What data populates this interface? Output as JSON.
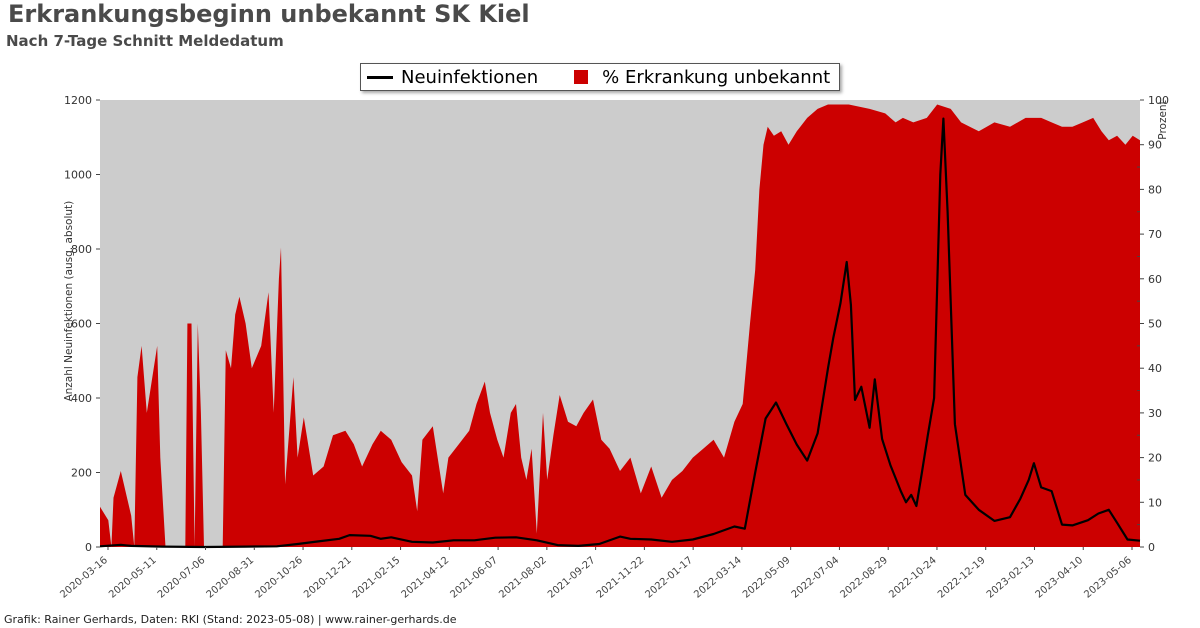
{
  "header": {
    "title": "Erkrankungsbeginn unbekannt SK Kiel",
    "subtitle": "Nach 7-Tage Schnitt Meldedatum"
  },
  "footer": {
    "credit": "Grafik: Rainer Gerhards, Daten: RKI (Stand: 2023-05-08) | www.rainer-gerhards.de"
  },
  "colors": {
    "plot_background": "#cccccc",
    "area": "#cc0000",
    "line": "#000000"
  },
  "chart_data": {
    "type": "area",
    "title": "Erkrankungsbeginn unbekannt SK Kiel",
    "subtitle": "Nach 7-Tage Schnitt Meldedatum",
    "ylabel": "Anzahl Neuinfektionen (ausg. absolut)",
    "y2label": "Prozent",
    "ylim": [
      0,
      1200
    ],
    "y2lim": [
      0,
      100
    ],
    "yticks": [
      0,
      200,
      400,
      600,
      800,
      1000,
      1200
    ],
    "y2ticks": [
      0,
      10,
      20,
      30,
      40,
      50,
      60,
      70,
      80,
      90,
      100
    ],
    "grid": false,
    "legend_position": "top-center",
    "x_start": "2020-03-16",
    "x_end": "2023-05-06",
    "series": [
      {
        "name": "Neuinfektionen",
        "type": "line",
        "axis": "left",
        "points": [
          [
            0.0,
            2
          ],
          [
            0.02,
            6
          ],
          [
            0.03,
            3
          ],
          [
            0.06,
            1
          ],
          [
            0.1,
            0
          ],
          [
            0.14,
            1
          ],
          [
            0.17,
            2
          ],
          [
            0.19,
            8
          ],
          [
            0.21,
            15
          ],
          [
            0.23,
            22
          ],
          [
            0.24,
            32
          ],
          [
            0.26,
            30
          ],
          [
            0.27,
            22
          ],
          [
            0.28,
            26
          ],
          [
            0.3,
            14
          ],
          [
            0.32,
            12
          ],
          [
            0.34,
            18
          ],
          [
            0.36,
            18
          ],
          [
            0.38,
            25
          ],
          [
            0.4,
            26
          ],
          [
            0.42,
            18
          ],
          [
            0.44,
            5
          ],
          [
            0.46,
            3
          ],
          [
            0.48,
            8
          ],
          [
            0.5,
            28
          ],
          [
            0.51,
            22
          ],
          [
            0.53,
            20
          ],
          [
            0.55,
            14
          ],
          [
            0.57,
            20
          ],
          [
            0.59,
            35
          ],
          [
            0.61,
            55
          ],
          [
            0.62,
            49
          ],
          [
            0.63,
            200
          ],
          [
            0.64,
            345
          ],
          [
            0.65,
            388
          ],
          [
            0.66,
            330
          ],
          [
            0.67,
            275
          ],
          [
            0.68,
            232
          ],
          [
            0.69,
            305
          ],
          [
            0.7,
            480
          ],
          [
            0.705,
            560
          ],
          [
            0.712,
            655
          ],
          [
            0.718,
            765
          ],
          [
            0.722,
            650
          ],
          [
            0.726,
            395
          ],
          [
            0.732,
            430
          ],
          [
            0.74,
            320
          ],
          [
            0.745,
            450
          ],
          [
            0.752,
            290
          ],
          [
            0.76,
            220
          ],
          [
            0.77,
            150
          ],
          [
            0.775,
            120
          ],
          [
            0.78,
            140
          ],
          [
            0.785,
            110
          ],
          [
            0.79,
            195
          ],
          [
            0.796,
            300
          ],
          [
            0.802,
            400
          ],
          [
            0.808,
            1000
          ],
          [
            0.811,
            1150
          ],
          [
            0.815,
            900
          ],
          [
            0.822,
            330
          ],
          [
            0.832,
            140
          ],
          [
            0.845,
            100
          ],
          [
            0.86,
            70
          ],
          [
            0.875,
            80
          ],
          [
            0.885,
            130
          ],
          [
            0.893,
            180
          ],
          [
            0.898,
            225
          ],
          [
            0.905,
            160
          ],
          [
            0.915,
            150
          ],
          [
            0.925,
            60
          ],
          [
            0.935,
            58
          ],
          [
            0.95,
            72
          ],
          [
            0.96,
            90
          ],
          [
            0.97,
            100
          ],
          [
            0.978,
            65
          ],
          [
            0.988,
            20
          ],
          [
            1.0,
            17
          ]
        ]
      },
      {
        "name": "% Erkrankung unbekannt",
        "type": "area",
        "axis": "right",
        "points": [
          [
            0.0,
            9
          ],
          [
            0.008,
            6
          ],
          [
            0.011,
            0
          ],
          [
            0.013,
            11
          ],
          [
            0.02,
            17
          ],
          [
            0.03,
            7
          ],
          [
            0.033,
            0
          ],
          [
            0.036,
            38
          ],
          [
            0.04,
            45
          ],
          [
            0.045,
            30
          ],
          [
            0.055,
            45
          ],
          [
            0.058,
            20
          ],
          [
            0.063,
            0
          ],
          [
            0.082,
            0
          ],
          [
            0.084,
            50
          ],
          [
            0.088,
            50
          ],
          [
            0.091,
            0
          ],
          [
            0.094,
            50
          ],
          [
            0.097,
            30
          ],
          [
            0.1,
            0
          ],
          [
            0.118,
            0
          ],
          [
            0.121,
            44
          ],
          [
            0.126,
            40
          ],
          [
            0.13,
            52
          ],
          [
            0.134,
            56
          ],
          [
            0.14,
            50
          ],
          [
            0.146,
            40
          ],
          [
            0.155,
            45
          ],
          [
            0.162,
            57
          ],
          [
            0.167,
            30
          ],
          [
            0.172,
            60
          ],
          [
            0.174,
            67
          ],
          [
            0.178,
            14
          ],
          [
            0.186,
            38
          ],
          [
            0.19,
            20
          ],
          [
            0.196,
            29
          ],
          [
            0.205,
            16
          ],
          [
            0.215,
            18
          ],
          [
            0.224,
            25
          ],
          [
            0.236,
            26
          ],
          [
            0.244,
            23
          ],
          [
            0.252,
            18
          ],
          [
            0.262,
            23
          ],
          [
            0.27,
            26
          ],
          [
            0.28,
            24
          ],
          [
            0.29,
            19
          ],
          [
            0.3,
            16
          ],
          [
            0.305,
            8
          ],
          [
            0.31,
            24
          ],
          [
            0.32,
            27
          ],
          [
            0.33,
            12
          ],
          [
            0.335,
            20
          ],
          [
            0.345,
            23
          ],
          [
            0.355,
            26
          ],
          [
            0.362,
            32
          ],
          [
            0.37,
            37
          ],
          [
            0.375,
            30
          ],
          [
            0.382,
            24
          ],
          [
            0.388,
            20
          ],
          [
            0.395,
            30
          ],
          [
            0.4,
            32
          ],
          [
            0.405,
            20
          ],
          [
            0.41,
            15
          ],
          [
            0.415,
            22
          ],
          [
            0.42,
            3
          ],
          [
            0.426,
            30
          ],
          [
            0.43,
            15
          ],
          [
            0.436,
            25
          ],
          [
            0.442,
            34
          ],
          [
            0.45,
            28
          ],
          [
            0.458,
            27
          ],
          [
            0.465,
            30
          ],
          [
            0.474,
            33
          ],
          [
            0.482,
            24
          ],
          [
            0.49,
            22
          ],
          [
            0.5,
            17
          ],
          [
            0.51,
            20
          ],
          [
            0.52,
            12
          ],
          [
            0.53,
            18
          ],
          [
            0.54,
            11
          ],
          [
            0.55,
            15
          ],
          [
            0.56,
            17
          ],
          [
            0.57,
            20
          ],
          [
            0.58,
            22
          ],
          [
            0.59,
            24
          ],
          [
            0.6,
            20
          ],
          [
            0.61,
            28
          ],
          [
            0.618,
            32
          ],
          [
            0.625,
            50
          ],
          [
            0.63,
            62
          ],
          [
            0.634,
            80
          ],
          [
            0.638,
            90
          ],
          [
            0.642,
            94
          ],
          [
            0.648,
            92
          ],
          [
            0.655,
            93
          ],
          [
            0.662,
            90
          ],
          [
            0.67,
            93
          ],
          [
            0.68,
            96
          ],
          [
            0.69,
            98
          ],
          [
            0.7,
            99
          ],
          [
            0.72,
            99
          ],
          [
            0.74,
            98
          ],
          [
            0.755,
            97
          ],
          [
            0.765,
            95
          ],
          [
            0.772,
            96
          ],
          [
            0.782,
            95
          ],
          [
            0.795,
            96
          ],
          [
            0.805,
            99
          ],
          [
            0.818,
            98
          ],
          [
            0.828,
            95
          ],
          [
            0.845,
            93
          ],
          [
            0.86,
            95
          ],
          [
            0.875,
            94
          ],
          [
            0.89,
            96
          ],
          [
            0.905,
            96
          ],
          [
            0.915,
            95
          ],
          [
            0.925,
            94
          ],
          [
            0.935,
            94
          ],
          [
            0.945,
            95
          ],
          [
            0.955,
            96
          ],
          [
            0.963,
            93
          ],
          [
            0.97,
            91
          ],
          [
            0.978,
            92
          ],
          [
            0.986,
            90
          ],
          [
            0.993,
            92
          ],
          [
            1.0,
            91
          ],
          [
            1.01,
            90
          ],
          [
            1.02,
            88
          ],
          [
            1.03,
            85
          ],
          [
            1.04,
            82
          ],
          [
            1.05,
            80
          ],
          [
            1.06,
            70
          ],
          [
            1.07,
            68
          ]
        ]
      }
    ]
  },
  "x_tick_dates": [
    "2020-03-16",
    "2020-05-11",
    "2020-07-06",
    "2020-08-31",
    "2020-10-26",
    "2020-12-21",
    "2021-02-15",
    "2021-04-12",
    "2021-06-07",
    "2021-08-02",
    "2021-09-27",
    "2021-11-22",
    "2022-01-17",
    "2022-03-14",
    "2022-05-09",
    "2022-07-04",
    "2022-08-29",
    "2022-10-24",
    "2022-12-19",
    "2023-02-13",
    "2023-04-10",
    "2023-05-06"
  ]
}
